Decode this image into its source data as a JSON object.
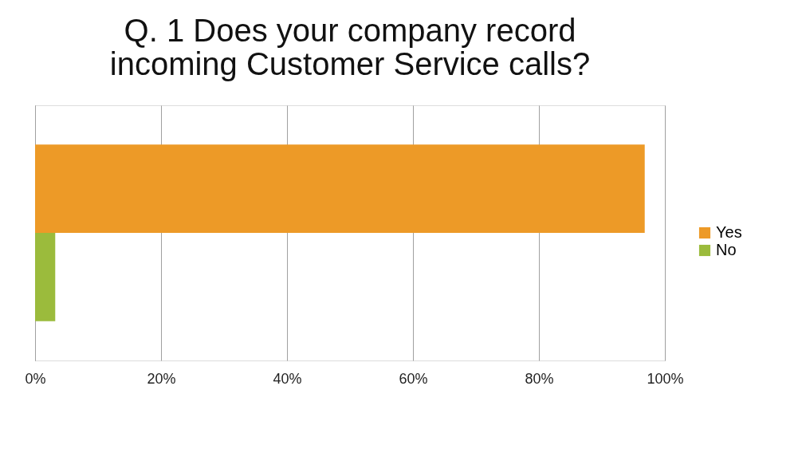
{
  "chart_data": {
    "type": "bar",
    "orientation": "horizontal",
    "title": [
      "Q. 1 Does your company record",
      "incoming Customer Service calls?"
    ],
    "categories": [
      null
    ],
    "series": [
      {
        "name": "Yes",
        "color": "#ed9a27",
        "values": [
          96.8
        ]
      },
      {
        "name": "No",
        "color": "#9bbb3c",
        "values": [
          3.2
        ]
      }
    ],
    "xlim": [
      0,
      100
    ],
    "xticks": [
      {
        "value": 0,
        "label": "0%"
      },
      {
        "value": 20,
        "label": "20%"
      },
      {
        "value": 40,
        "label": "40%"
      },
      {
        "value": 60,
        "label": "60%"
      },
      {
        "value": 80,
        "label": "80%"
      },
      {
        "value": 100,
        "label": "100%"
      }
    ],
    "grid": "x",
    "legend": "right",
    "tick_labels": "x"
  }
}
